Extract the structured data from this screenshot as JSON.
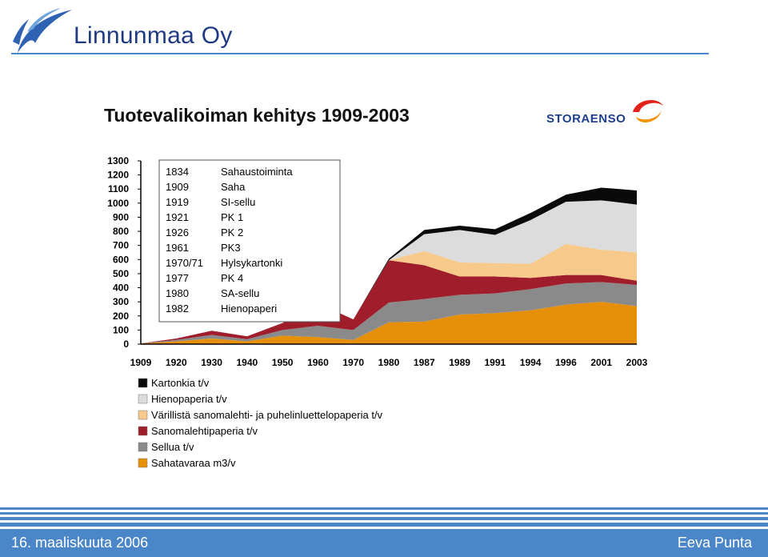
{
  "header": {
    "company": "Linnunmaa Oy"
  },
  "slide": {
    "title": "Tuotevalikoiman kehitys 1909-2003",
    "brand": "STORAENSO"
  },
  "footer": {
    "date": "16. maaliskuuta 2006",
    "author": "Eeva Punta"
  },
  "colors": {
    "sahatavaraa": "#e6900a",
    "sellua": "#8a8a8a",
    "sanomalehti": "#a01e2c",
    "varillista": "#f7c98a",
    "hienopaperia": "#dcdcdc",
    "kartonkia": "#0a0a0a",
    "header_line": "#4a86c8",
    "footer": "#4a86c8"
  },
  "chart_data": {
    "type": "area",
    "categories": [
      "1909",
      "1920",
      "1930",
      "1940",
      "1950",
      "1960",
      "1970",
      "1980",
      "1987",
      "1989",
      "1991",
      "1994",
      "1996",
      "2001",
      "2003"
    ],
    "ylim": [
      0,
      1300
    ],
    "yticks": [
      "0",
      "100",
      "200",
      "300",
      "400",
      "500",
      "600",
      "700",
      "800",
      "900",
      "1000",
      "1100",
      "1200",
      "1300"
    ],
    "series": [
      {
        "name": "Sahatavaraa m3/v",
        "values": [
          5,
          20,
          40,
          20,
          60,
          50,
          30,
          155,
          160,
          210,
          220,
          240,
          280,
          300,
          270
        ]
      },
      {
        "name": "Sellua t/v",
        "values": [
          0,
          10,
          25,
          15,
          40,
          80,
          70,
          140,
          160,
          140,
          140,
          150,
          150,
          140,
          150
        ]
      },
      {
        "name": "Sanomalehtipaperia t/v",
        "values": [
          0,
          10,
          30,
          20,
          50,
          160,
          75,
          300,
          240,
          130,
          120,
          80,
          60,
          50,
          30
        ]
      },
      {
        "name": "Värillistä sanomalehti- ja puhelinluettelopaperia t/v",
        "values": [
          0,
          0,
          0,
          0,
          0,
          0,
          0,
          0,
          100,
          100,
          95,
          100,
          220,
          180,
          200
        ]
      },
      {
        "name": "Hienopaperia t/v",
        "values": [
          0,
          0,
          0,
          0,
          0,
          0,
          0,
          0,
          120,
          230,
          200,
          310,
          300,
          350,
          340
        ]
      },
      {
        "name": "Kartonkia t/v",
        "values": [
          0,
          0,
          0,
          0,
          0,
          0,
          0,
          10,
          30,
          30,
          40,
          50,
          50,
          90,
          100
        ]
      }
    ],
    "legend": [
      {
        "label": "Kartonkia t/v",
        "color": "#0a0a0a"
      },
      {
        "label": "Hienopaperia t/v",
        "color": "#dcdcdc"
      },
      {
        "label": "Värillistä sanomalehti- ja puhelinluettelopaperia t/v",
        "color": "#f7c98a"
      },
      {
        "label": "Sanomalehtipaperia t/v",
        "color": "#a01e2c"
      },
      {
        "label": "Sellua t/v",
        "color": "#8a8a8a"
      },
      {
        "label": "Sahatavaraa m3/v",
        "color": "#e6900a"
      }
    ],
    "annotations": [
      {
        "year": "1834",
        "event": "Sahaustoiminta"
      },
      {
        "year": "1909",
        "event": "Saha"
      },
      {
        "year": "1919",
        "event": "SI-sellu"
      },
      {
        "year": "1921",
        "event": "PK 1"
      },
      {
        "year": "1926",
        "event": "PK 2"
      },
      {
        "year": "1961",
        "event": "PK3"
      },
      {
        "year": "1970/71",
        "event": "Hylsykartonki"
      },
      {
        "year": "1977",
        "event": "PK 4"
      },
      {
        "year": "1980",
        "event": "SA-sellu"
      },
      {
        "year": "1982",
        "event": "Hienopaperi"
      }
    ],
    "legend_position": "bottom-left"
  }
}
